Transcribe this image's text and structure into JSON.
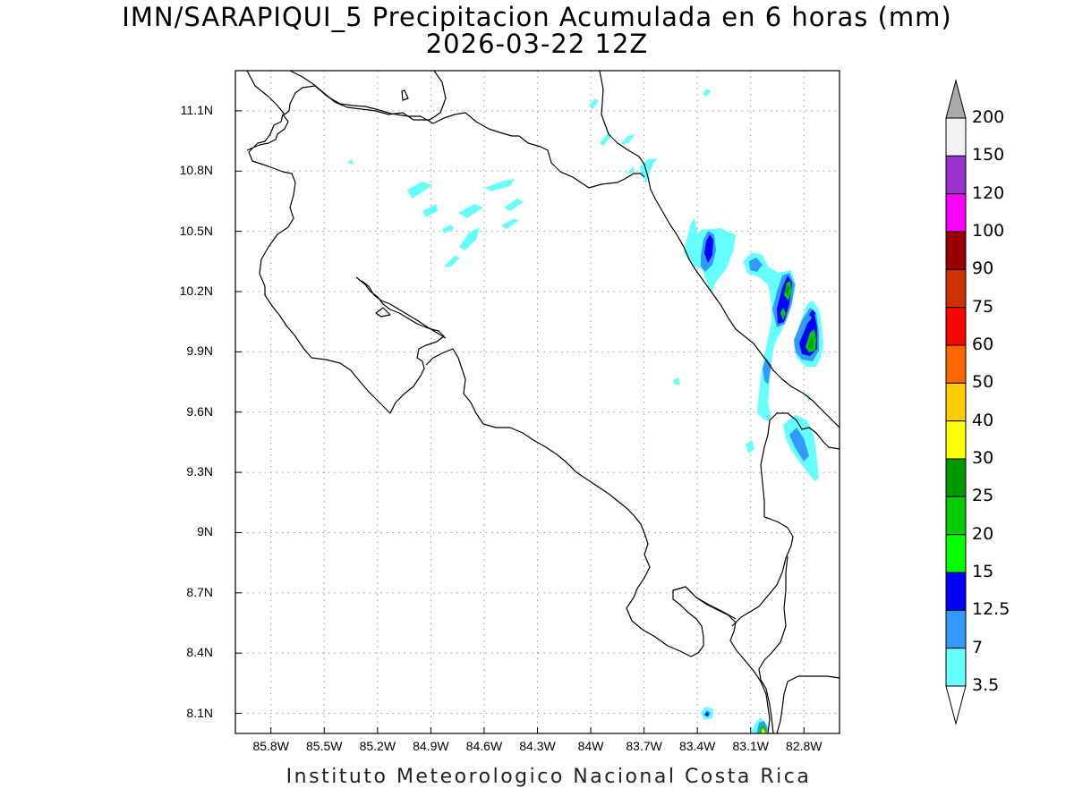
{
  "title": {
    "line1": "IMN/SARAPIQUI_5 Precipitacion Acumulada en 6 horas (mm)",
    "line2": "2026-03-22 12Z"
  },
  "footer": "Instituto Meteorologico Nacional Costa Rica",
  "axes": {
    "lat_labels": [
      "11.1N",
      "10.8N",
      "10.5N",
      "10.2N",
      "9.9N",
      "9.6N",
      "9.3N",
      "9N",
      "8.7N",
      "8.4N",
      "8.1N"
    ],
    "lat_values": [
      11.1,
      10.8,
      10.5,
      10.2,
      9.9,
      9.6,
      9.3,
      9.0,
      8.7,
      8.4,
      8.1
    ],
    "lon_labels": [
      "85.8W",
      "85.5W",
      "85.2W",
      "84.9W",
      "84.6W",
      "84.3W",
      "84W",
      "83.7W",
      "83.4W",
      "83.1W",
      "82.8W"
    ],
    "lon_values": [
      -85.8,
      -85.5,
      -85.2,
      -84.9,
      -84.6,
      -84.3,
      -84.0,
      -83.7,
      -83.4,
      -83.1,
      -82.8
    ],
    "lon_range": [
      -86.0,
      -82.6
    ],
    "lat_range": [
      8.0,
      11.3
    ],
    "grid": true
  },
  "colorbar": {
    "labels": [
      "200",
      "150",
      "120",
      "100",
      "90",
      "75",
      "60",
      "50",
      "40",
      "30",
      "25",
      "20",
      "15",
      "12.5",
      "7",
      "3.5"
    ],
    "colors": [
      "#f2f2f2",
      "#9933cc",
      "#ff00ff",
      "#990000",
      "#cc3300",
      "#ff0000",
      "#ff6600",
      "#ffcc00",
      "#ffff00",
      "#009900",
      "#00cc00",
      "#00ff00",
      "#0000ff",
      "#3399ff",
      "#66ffff"
    ],
    "over_color": "#aaaaaa",
    "under_color": "#ffffff"
  }
}
